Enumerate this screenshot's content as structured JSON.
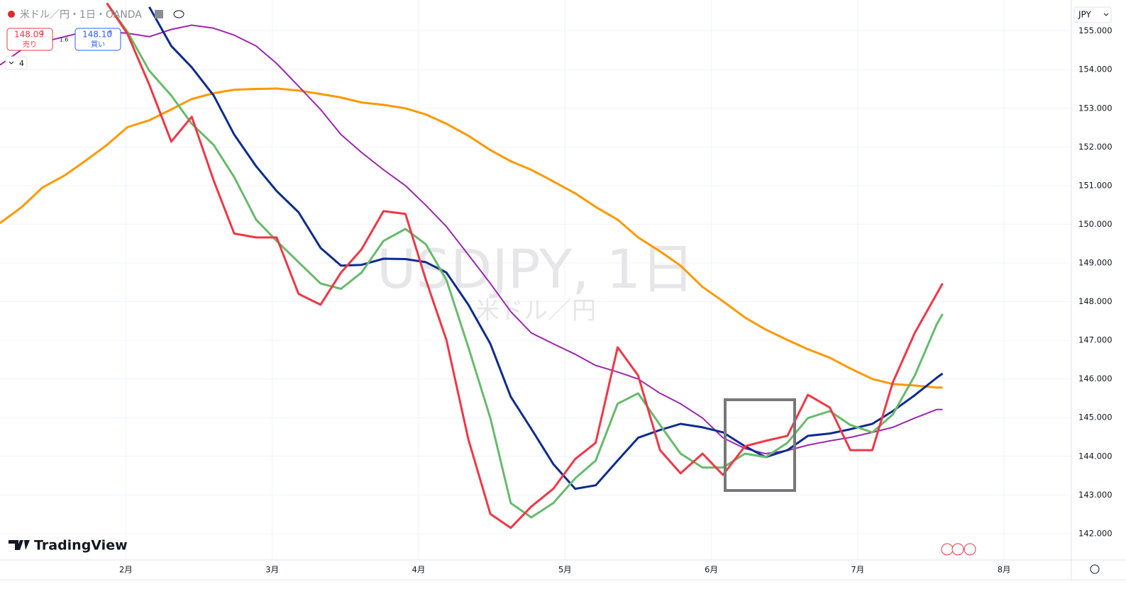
{
  "header": {
    "symbol_line": "米ドル／円・1日・OANDA",
    "sell": {
      "price": "148.09",
      "pip": "2",
      "label": "売り"
    },
    "spread": "1.6",
    "buy": {
      "price": "148.10",
      "pip": "8",
      "label": "買い"
    },
    "indicator_count": "4"
  },
  "watermark": {
    "title": "USDJPY, 1日",
    "subtitle": "米ドル／円"
  },
  "brand": "TradingView",
  "currency": "JPY",
  "chart_data": {
    "type": "line",
    "x": [
      1.14,
      1.29,
      1.43,
      1.58,
      1.72,
      1.87,
      2.01,
      2.16,
      2.31,
      2.45,
      2.6,
      2.74,
      2.89,
      3.03,
      3.18,
      3.33,
      3.47,
      3.61,
      3.76,
      3.91,
      4.05,
      4.19,
      4.34,
      4.49,
      4.63,
      4.77,
      4.92,
      5.07,
      5.21,
      5.36,
      5.5,
      5.65,
      5.79,
      5.94,
      6.08,
      6.23,
      6.37,
      6.52,
      6.66,
      6.81,
      6.95,
      7.1,
      7.24,
      7.39,
      7.54,
      7.58
    ],
    "series": [
      {
        "color": "#ff9800",
        "width": 3,
        "values": [
          150.03,
          150.45,
          150.95,
          151.26,
          151.63,
          152.05,
          152.51,
          152.69,
          152.97,
          153.24,
          153.39,
          153.48,
          153.5,
          153.51,
          153.46,
          153.37,
          153.28,
          153.15,
          153.09,
          153.0,
          152.84,
          152.6,
          152.29,
          151.92,
          151.63,
          151.41,
          151.11,
          150.8,
          150.45,
          150.12,
          149.66,
          149.3,
          148.93,
          148.38,
          148.01,
          147.59,
          147.28,
          147.01,
          146.77,
          146.55,
          146.27,
          146.0,
          145.87,
          145.83,
          145.78,
          145.78
        ]
      },
      {
        "color": "#9c27b0",
        "width": 2,
        "values": [
          154.12,
          154.52,
          154.71,
          154.85,
          154.98,
          154.98,
          154.94,
          154.85,
          155.04,
          155.15,
          155.07,
          154.89,
          154.61,
          154.16,
          153.57,
          152.97,
          152.32,
          151.86,
          151.41,
          151.0,
          150.49,
          149.94,
          149.21,
          148.47,
          147.74,
          147.19,
          146.91,
          146.64,
          146.35,
          146.18,
          146.0,
          145.63,
          145.36,
          144.99,
          144.48,
          144.2,
          144.07,
          144.15,
          144.29,
          144.4,
          144.49,
          144.62,
          144.75,
          144.99,
          145.21,
          145.21
        ]
      },
      {
        "color": "#0d2c8f",
        "width": 3,
        "values": [
          null,
          null,
          null,
          null,
          null,
          null,
          null,
          155.62,
          154.61,
          154.06,
          153.33,
          152.32,
          151.5,
          150.86,
          150.31,
          149.39,
          148.93,
          148.95,
          149.11,
          149.1,
          149.02,
          148.75,
          147.92,
          146.91,
          145.54,
          144.71,
          143.8,
          143.16,
          143.25,
          143.89,
          144.48,
          144.68,
          144.84,
          144.75,
          144.62,
          144.26,
          143.98,
          144.16,
          144.53,
          144.59,
          144.7,
          144.84,
          145.17,
          145.58,
          146.03,
          146.14
        ]
      },
      {
        "color": "#66bb6a",
        "width": 3,
        "values": [
          null,
          null,
          null,
          null,
          null,
          155.72,
          154.98,
          153.97,
          153.33,
          152.6,
          152.05,
          151.22,
          150.12,
          149.57,
          149.02,
          148.47,
          148.33,
          148.75,
          149.57,
          149.88,
          149.48,
          148.56,
          146.82,
          144.99,
          142.79,
          142.42,
          142.79,
          143.43,
          143.89,
          145.36,
          145.63,
          144.81,
          144.07,
          143.71,
          143.71,
          144.07,
          143.98,
          144.35,
          144.99,
          145.17,
          144.81,
          144.62,
          145.08,
          146.09,
          147.41,
          147.68
        ]
      },
      {
        "color": "#f23645",
        "width": 3,
        "values": [
          null,
          null,
          null,
          null,
          null,
          155.72,
          154.93,
          153.61,
          152.14,
          152.78,
          151.13,
          149.76,
          149.66,
          149.66,
          148.2,
          147.92,
          148.75,
          149.35,
          150.34,
          150.27,
          148.56,
          147.01,
          144.44,
          142.51,
          142.15,
          142.7,
          143.16,
          143.93,
          144.35,
          146.82,
          146.09,
          144.16,
          143.56,
          144.07,
          143.52,
          144.26,
          144.4,
          144.53,
          145.59,
          145.26,
          144.16,
          144.16,
          145.91,
          147.19,
          148.2,
          148.47
        ]
      }
    ],
    "xlim": [
      1.14,
      8.46
    ],
    "xticks": [
      {
        "value": 2,
        "label": "2月"
      },
      {
        "value": 3,
        "label": "3月"
      },
      {
        "value": 4,
        "label": "4月"
      },
      {
        "value": 5,
        "label": "5月"
      },
      {
        "value": 6,
        "label": "6月"
      },
      {
        "value": 7,
        "label": "7月"
      },
      {
        "value": 8,
        "label": "8月"
      }
    ],
    "ylim": [
      141.32,
      155.8
    ],
    "yticks": [
      {
        "value": 142,
        "label": "142.000"
      },
      {
        "value": 143,
        "label": "143.000"
      },
      {
        "value": 144,
        "label": "144.000"
      },
      {
        "value": 145,
        "label": "145.000"
      },
      {
        "value": 146,
        "label": "146.000"
      },
      {
        "value": 147,
        "label": "147.000"
      },
      {
        "value": 148,
        "label": "148.000"
      },
      {
        "value": 149,
        "label": "149.000"
      },
      {
        "value": 150,
        "label": "150.000"
      },
      {
        "value": 151,
        "label": "151.000"
      },
      {
        "value": 152,
        "label": "152.000"
      },
      {
        "value": 153,
        "label": "153.000"
      },
      {
        "value": 154,
        "label": "154.000"
      },
      {
        "value": 155,
        "label": "155.000"
      }
    ],
    "grid": true
  }
}
